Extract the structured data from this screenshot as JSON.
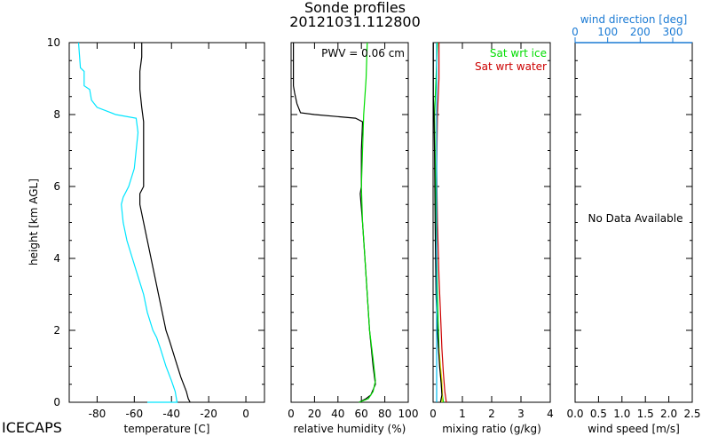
{
  "figure": {
    "title": "Sonde profiles",
    "subtitle": "20121031.112800",
    "station": "ICECAPS",
    "ylabel": "height [km AGL]"
  },
  "chart_data": [
    {
      "id": "temperature",
      "type": "line",
      "xlabel": "temperature [C]",
      "xlim": [
        -95,
        10
      ],
      "ylim": [
        0,
        10
      ],
      "xticks": [
        -80,
        -60,
        -40,
        -20,
        0
      ],
      "yticks": [
        0,
        2,
        4,
        6,
        8,
        10
      ],
      "series": [
        {
          "name": "",
          "color": "#000000",
          "points": [
            [
              -30,
              0
            ],
            [
              -31,
              0.1
            ],
            [
              -32,
              0.3
            ],
            [
              -35,
              0.7
            ],
            [
              -38,
              1.2
            ],
            [
              -41,
              1.7
            ],
            [
              -43,
              2.0
            ],
            [
              -45,
              2.5
            ],
            [
              -47,
              3.0
            ],
            [
              -49,
              3.5
            ],
            [
              -51,
              4.0
            ],
            [
              -53,
              4.5
            ],
            [
              -55,
              5.0
            ],
            [
              -57,
              5.5
            ],
            [
              -57,
              5.8
            ],
            [
              -55,
              6.0
            ],
            [
              -55,
              7.0
            ],
            [
              -55,
              7.8
            ],
            [
              -56,
              8.2
            ],
            [
              -57,
              8.7
            ],
            [
              -57,
              9.2
            ],
            [
              -56,
              9.6
            ],
            [
              -56,
              10
            ]
          ]
        },
        {
          "name": "",
          "color": "#00e5ff",
          "points": [
            [
              -53,
              0
            ],
            [
              -37,
              0
            ],
            [
              -38,
              0.3
            ],
            [
              -40,
              0.6
            ],
            [
              -43,
              1.0
            ],
            [
              -46,
              1.5
            ],
            [
              -48,
              1.8
            ],
            [
              -50,
              2.0
            ],
            [
              -53,
              2.5
            ],
            [
              -55,
              3.0
            ],
            [
              -58,
              3.5
            ],
            [
              -61,
              4.0
            ],
            [
              -64,
              4.5
            ],
            [
              -66,
              5.0
            ],
            [
              -67,
              5.5
            ],
            [
              -66,
              5.7
            ],
            [
              -63,
              6.0
            ],
            [
              -60,
              6.5
            ],
            [
              -59,
              7.0
            ],
            [
              -58,
              7.5
            ],
            [
              -59,
              7.9
            ],
            [
              -70,
              8.0
            ],
            [
              -80,
              8.2
            ],
            [
              -83,
              8.4
            ],
            [
              -84,
              8.7
            ],
            [
              -87,
              8.8
            ],
            [
              -87,
              9.2
            ],
            [
              -89,
              9.3
            ],
            [
              -90,
              10
            ]
          ]
        }
      ]
    },
    {
      "id": "relative-humidity",
      "type": "line",
      "xlabel": "relative humidity (%)",
      "xlim": [
        0,
        100
      ],
      "ylim": [
        0,
        10
      ],
      "xticks": [
        0,
        20,
        40,
        60,
        80,
        100
      ],
      "annotation": "PWV = 0.06 cm",
      "series": [
        {
          "name": "",
          "color": "#000000",
          "points": [
            [
              58,
              0
            ],
            [
              64,
              0.1
            ],
            [
              68,
              0.2
            ],
            [
              72,
              0.5
            ],
            [
              70,
              1.0
            ],
            [
              67,
              2.0
            ],
            [
              65,
              3.0
            ],
            [
              63,
              4.0
            ],
            [
              61,
              5.0
            ],
            [
              59,
              5.8
            ],
            [
              60,
              6.0
            ],
            [
              60,
              7.0
            ],
            [
              61,
              7.8
            ],
            [
              55,
              7.9
            ],
            [
              20,
              8.0
            ],
            [
              8,
              8.05
            ],
            [
              5,
              8.3
            ],
            [
              3,
              8.6
            ],
            [
              2,
              8.8
            ],
            [
              2,
              10
            ]
          ]
        },
        {
          "name": "",
          "color": "#00dd00",
          "points": [
            [
              58,
              0
            ],
            [
              66,
              0.1
            ],
            [
              70,
              0.3
            ],
            [
              72,
              0.6
            ],
            [
              70,
              1.2
            ],
            [
              67,
              2.0
            ],
            [
              65,
              3.0
            ],
            [
              63,
              4.0
            ],
            [
              61,
              5.0
            ],
            [
              60,
              6.0
            ],
            [
              61,
              7.0
            ],
            [
              62,
              8.0
            ],
            [
              64,
              9.0
            ],
            [
              65,
              10
            ]
          ]
        }
      ]
    },
    {
      "id": "mixing-ratio",
      "type": "line",
      "xlabel": "mixing ratio (g/kg)",
      "xlim": [
        0,
        4
      ],
      "ylim": [
        0,
        10
      ],
      "xticks": [
        0,
        1,
        2,
        3,
        4
      ],
      "legend": [
        {
          "name": "Sat wrt ice",
          "color": "#00dd00"
        },
        {
          "name": "Sat wrt water",
          "color": "#cc0000"
        }
      ],
      "series": [
        {
          "name": "Sat wrt water",
          "color": "#cc0000",
          "points": [
            [
              0.45,
              0
            ],
            [
              0.4,
              0.3
            ],
            [
              0.35,
              0.8
            ],
            [
              0.3,
              1.5
            ],
            [
              0.25,
              2.5
            ],
            [
              0.2,
              3.5
            ],
            [
              0.15,
              5.0
            ],
            [
              0.12,
              6.5
            ],
            [
              0.15,
              8.0
            ],
            [
              0.2,
              9.0
            ],
            [
              0.2,
              10
            ]
          ]
        },
        {
          "name": "Sat wrt ice",
          "color": "#00dd00",
          "points": [
            [
              0.35,
              0
            ],
            [
              0.3,
              0.3
            ],
            [
              0.25,
              0.8
            ],
            [
              0.2,
              1.5
            ],
            [
              0.15,
              3.0
            ],
            [
              0.1,
              5.0
            ],
            [
              0.08,
              6.5
            ],
            [
              0.05,
              8.0
            ],
            [
              0.1,
              9.0
            ],
            [
              0.15,
              10
            ]
          ]
        },
        {
          "name": "",
          "color": "#dddd00",
          "points": [
            [
              0.3,
              0
            ],
            [
              0.32,
              0.2
            ],
            [
              0.3,
              0.6
            ],
            [
              0.25,
              1.0
            ],
            [
              0.2,
              1.5
            ]
          ]
        },
        {
          "name": "",
          "color": "#000000",
          "points": [
            [
              0.25,
              0
            ],
            [
              0.3,
              0.2
            ],
            [
              0.28,
              0.5
            ],
            [
              0.22,
              1.0
            ],
            [
              0.15,
              2.0
            ],
            [
              0.1,
              3.0
            ],
            [
              0.07,
              5.0
            ],
            [
              0.05,
              7.0
            ],
            [
              0.03,
              8.0
            ],
            [
              0.01,
              8.5
            ],
            [
              0.01,
              10
            ]
          ]
        },
        {
          "name": "",
          "color": "#00bbee",
          "points": [
            [
              0.12,
              0
            ],
            [
              0.12,
              10
            ]
          ]
        }
      ]
    },
    {
      "id": "wind",
      "type": "line",
      "xlabel": "wind speed [m/s]",
      "xlim": [
        0,
        2.5
      ],
      "ylim": [
        0,
        10
      ],
      "xticks": [
        0.0,
        0.5,
        1.0,
        1.5,
        2.0,
        2.5
      ],
      "top_axis": {
        "label": "wind direction [deg]",
        "color": "#1a7ad4",
        "xlim": [
          0,
          360
        ],
        "ticks": [
          0,
          100,
          200,
          300
        ]
      },
      "message": "No Data Available",
      "series": []
    }
  ]
}
